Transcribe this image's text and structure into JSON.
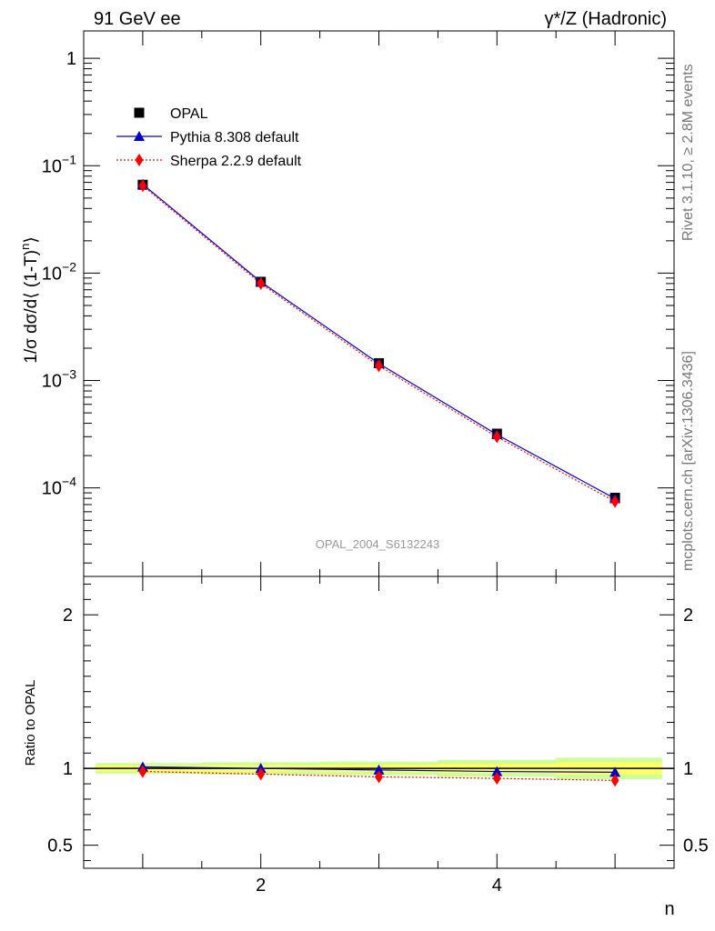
{
  "header": {
    "left": "91 GeV ee",
    "right": "γ*/Z (Hadronic)"
  },
  "side_text": {
    "rivet": "Rivet 3.1.10, ≥ 2.8M events",
    "mcplots": "mcplots.cern.ch [arXiv:1306.3436]"
  },
  "watermark": "OPAL_2004_S6132243",
  "chart_data": [
    {
      "type": "line",
      "panel": "main",
      "title": "",
      "xlabel": "n",
      "ylabel": "1/σ dσ/d⟨ (1-T)ⁿ⟩",
      "yscale": "log",
      "xlim": [
        0.5,
        5.5
      ],
      "ylim": [
        1.5e-05,
        1.8
      ],
      "x": [
        1,
        2,
        3,
        4,
        5
      ],
      "x_ticks": [
        2,
        4
      ],
      "y_ticks": [
        {
          "value": 1,
          "label": "1"
        },
        {
          "value": 0.1,
          "base": "10",
          "exp": "−1"
        },
        {
          "value": 0.01,
          "base": "10",
          "exp": "−2"
        },
        {
          "value": 0.001,
          "base": "10",
          "exp": "−3"
        },
        {
          "value": 0.0001,
          "base": "10",
          "exp": "−4"
        }
      ],
      "series": [
        {
          "name": "OPAL",
          "marker": "square",
          "color": "#000000",
          "values": [
            0.0665,
            0.0083,
            0.00145,
            0.00032,
            8.1e-05
          ]
        },
        {
          "name": "Pythia 8.308 default",
          "marker": "triangle",
          "color": "#0000cc",
          "line": "solid",
          "values": [
            0.0672,
            0.0083,
            0.00144,
            0.000314,
            7.95e-05
          ]
        },
        {
          "name": "Sherpa 2.2.9 default",
          "marker": "diamond",
          "color": "#ff0000",
          "line": "dotted",
          "values": [
            0.0652,
            0.008,
            0.00137,
            0.000299,
            7.47e-05
          ]
        }
      ],
      "legend_position": "top-left"
    },
    {
      "type": "line",
      "panel": "ratio",
      "ylabel": "Ratio to OPAL",
      "xlabel": "n",
      "xlim": [
        0.5,
        5.5
      ],
      "ylim": [
        0.35,
        2.25
      ],
      "x": [
        1,
        2,
        3,
        4,
        5
      ],
      "x_ticks": [
        2,
        4
      ],
      "y_ticks": [
        0.5,
        1,
        2
      ],
      "band_inner": {
        "color": "#ffff66",
        "halfwidth": [
          0.02,
          0.022,
          0.025,
          0.03,
          0.04
        ]
      },
      "band_outer": {
        "color": "#ccff99",
        "halfwidth": [
          0.015,
          0.018,
          0.02,
          0.025,
          0.03
        ]
      },
      "series": [
        {
          "name": "Pythia 8.308 default",
          "marker": "triangle",
          "color": "#0000cc",
          "line": "solid",
          "values": [
            1.01,
            1.0,
            0.99,
            0.98,
            0.975
          ]
        },
        {
          "name": "Sherpa 2.2.9 default",
          "marker": "diamond",
          "color": "#ff0000",
          "line": "dotted",
          "values": [
            0.98,
            0.963,
            0.945,
            0.935,
            0.922
          ]
        }
      ]
    }
  ]
}
